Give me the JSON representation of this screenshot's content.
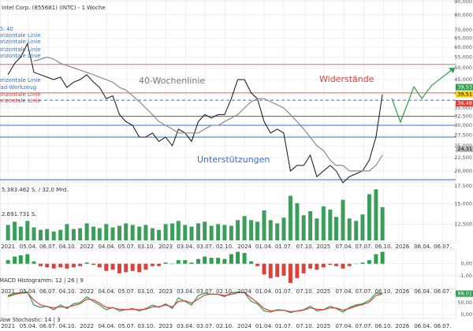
{
  "chart_data": [
    {
      "type": "line",
      "title": "Intel Corp. (855681) (INTC) - 1 Woche",
      "log_scale": true,
      "x": [
        "2021-01",
        "2021-02",
        "2021-03",
        "2021-04",
        "2021-05",
        "2021-06",
        "2021-07",
        "2021-08",
        "2021-09",
        "2021-10",
        "2021-11",
        "2021-12",
        "2022-01",
        "2022-02",
        "2022-03",
        "2022-04",
        "2022-05",
        "2022-06",
        "2022-07",
        "2022-08",
        "2022-09",
        "2022-10",
        "2022-11",
        "2022-12",
        "2023-01",
        "2023-02",
        "2023-03",
        "2023-04",
        "2023-05",
        "2023-06",
        "2023-07",
        "2023-08",
        "2023-09",
        "2023-10",
        "2023-11",
        "2023-12",
        "2024-01",
        "2024-02",
        "2024-03",
        "2024-04",
        "2024-05",
        "2024-06",
        "2024-07",
        "2024-08",
        "2024-09",
        "2024-10",
        "2024-11",
        "2024-12",
        "2025-01",
        "2025-02",
        "2025-03",
        "2025-04",
        "2025-05",
        "2025-06",
        "2025-07",
        "2025-08",
        "2025-09",
        "2025-10"
      ],
      "series": [
        {
          "color": "#111111",
          "values": [
            47,
            52,
            55,
            62,
            48,
            47,
            46,
            45,
            46,
            42,
            44,
            45,
            47,
            44,
            42,
            38,
            39,
            33,
            31,
            30,
            27,
            27,
            28,
            26,
            27,
            25,
            29,
            28,
            26,
            31,
            33,
            32,
            33,
            33,
            38,
            45,
            45,
            40,
            38,
            31,
            28,
            29,
            28,
            20,
            21,
            21,
            23,
            19,
            20,
            21,
            20,
            18,
            19,
            19.5,
            20,
            22,
            27,
            39.5
          ]
        },
        {
          "name": "40-Wochenlinie",
          "color": "#8a8a8a",
          "values": [
            null,
            null,
            null,
            null,
            53,
            54,
            55,
            54,
            52,
            51,
            50,
            49,
            48,
            47,
            46,
            45,
            44,
            42,
            41,
            39,
            37,
            35,
            33,
            31,
            30,
            29,
            28,
            28,
            28,
            28,
            29,
            30,
            30,
            31,
            32,
            33,
            35,
            37,
            38,
            38,
            37,
            36,
            35,
            33,
            31,
            29,
            27,
            25,
            24,
            22,
            21,
            21,
            20,
            20,
            20,
            20,
            21,
            23
          ]
        }
      ],
      "xlim": [
        "2020-11-25",
        "2026-09-05"
      ],
      "xticks": [
        {
          "value": "2021-01-01",
          "label": "2021"
        },
        {
          "value": "2021-04-05",
          "label": "05.04."
        },
        {
          "value": "2021-07-06",
          "label": "06.07."
        },
        {
          "value": "2021-10-04",
          "label": "04.10."
        },
        {
          "value": "2022-01-01",
          "label": "2022"
        },
        {
          "value": "2022-04-04",
          "label": "04.04."
        },
        {
          "value": "2022-07-05",
          "label": "05.07."
        },
        {
          "value": "2022-10-03",
          "label": "03.10."
        },
        {
          "value": "2023-01-01",
          "label": "2023"
        },
        {
          "value": "2023-04-03",
          "label": "03.04."
        },
        {
          "value": "2023-07-03",
          "label": "03.07."
        },
        {
          "value": "2023-10-02",
          "label": "02.10."
        },
        {
          "value": "2024-01-01",
          "label": "2024"
        },
        {
          "value": "2024-04-01",
          "label": "01.04."
        },
        {
          "value": "2024-07-01",
          "label": "01.07."
        },
        {
          "value": "2024-10-07",
          "label": "07.10."
        },
        {
          "value": "2025-01-01",
          "label": "2025"
        },
        {
          "value": "2025-04-07",
          "label": "07.04."
        },
        {
          "value": "2025-07-07",
          "label": "07.07."
        },
        {
          "value": "2025-10-06",
          "label": "06.10."
        },
        {
          "value": "2026-01-01",
          "label": "2026"
        },
        {
          "value": "2026-04-06",
          "label": "06.04."
        },
        {
          "value": "2026-07-06",
          "label": "06.07."
        }
      ],
      "ylim": [
        17.5,
        90
      ],
      "yticks": [
        {
          "value": 90,
          "label": "90,000"
        },
        {
          "value": 80,
          "label": "80,000"
        },
        {
          "value": 70,
          "label": "70,000"
        },
        {
          "value": 65,
          "label": "65,000"
        },
        {
          "value": 60,
          "label": "60,000"
        },
        {
          "value": 55,
          "label": "55,000"
        },
        {
          "value": 50,
          "label": "50,000"
        },
        {
          "value": 45,
          "label": "45,000"
        },
        {
          "value": 40,
          "label": "40,000"
        },
        {
          "value": 35,
          "label": "35,000"
        },
        {
          "value": 32.5,
          "label": "32,500"
        },
        {
          "value": 30,
          "label": "30,000"
        },
        {
          "value": 27.5,
          "label": "27,500"
        },
        {
          "value": 25,
          "label": "25,000"
        },
        {
          "value": 22.5,
          "label": "22,500"
        },
        {
          "value": 20,
          "label": "20,000"
        },
        {
          "value": 17.5,
          "label": "17,500"
        }
      ],
      "hlines": [
        {
          "value": 51.5,
          "color": "#e06666"
        },
        {
          "value": 40,
          "color": "#e06666"
        },
        {
          "value": 37.5,
          "color": "#3a6fc4",
          "dashed": true
        },
        {
          "value": 32.5,
          "color": "#3a6fc4"
        },
        {
          "value": 30,
          "color": "#3a6fc4"
        },
        {
          "value": 27,
          "color": "#3a6fc4"
        },
        {
          "value": 18.5,
          "color": "#3a6fc4"
        }
      ],
      "price_labels": [
        {
          "value": 39.53,
          "label": "39,53",
          "color": "#2e9e4f"
        },
        {
          "value": 39.51,
          "label": "39,51",
          "color": "#f2d21b"
        },
        {
          "value": 36.48,
          "label": "36,48",
          "color": "#e0403a"
        },
        {
          "value": 24.31,
          "label": "24,31",
          "color": "#bbbbbb"
        }
      ],
      "annotations": [
        "Widerstände",
        "Unterstützungen"
      ],
      "left_labels": [
        "D: 40",
        "orizontale Linie",
        "orizontale Linie",
        "orizontale Linie",
        "orizontale Linie",
        "orizontale Linie",
        "fad-Werkzeug",
        "orizontale Linie",
        "orizontale Linie"
      ]
    },
    {
      "type": "bar",
      "color": "#3c9e5a",
      "values": [
        12.4,
        12.8,
        12.2,
        12.9,
        12.1,
        11.8,
        11.9,
        11.6,
        11.8,
        12.5,
        11.9,
        12.0,
        12.6,
        12.2,
        12.0,
        12.5,
        12.1,
        12.3,
        12.6,
        12.4,
        12.2,
        12.4,
        12.0,
        11.8,
        12.5,
        12.6,
        12.9,
        12.4,
        12.2,
        12.6,
        12.8,
        12.3,
        12.5,
        12.4,
        12.3,
        13.0,
        13.5,
        13.0,
        12.8,
        14.2,
        13.0,
        12.6,
        13.3,
        16.0,
        15.1,
        13.6,
        14.1,
        13.2,
        14.7,
        14.3,
        13.4,
        15.5,
        13.2,
        12.9,
        13.7,
        16.2,
        16.8,
        14.6
      ],
      "ylim": [
        10.5,
        17.6
      ],
      "yticks": [
        {
          "value": 15,
          "label": "15,000"
        },
        {
          "value": 12.5,
          "label": "12,500"
        }
      ],
      "annotations": [
        "5.383.462 S. / 32,0 Mrd.",
        "2.691.731 S."
      ]
    },
    {
      "type": "bar",
      "title": "MACD Histogramm: 12 | 26 | 9",
      "colors": {
        "positive": "#2e9e4f",
        "negative": "#e0403a"
      },
      "values": [
        0.3,
        0.6,
        0.7,
        0.8,
        0.2,
        -0.2,
        -0.3,
        -0.4,
        -0.3,
        -0.4,
        -0.3,
        -0.2,
        0.1,
        -0.1,
        -0.3,
        -0.6,
        -0.5,
        -0.8,
        -0.7,
        -0.6,
        -0.7,
        -0.5,
        -0.2,
        -0.2,
        0.1,
        0,
        0.3,
        0.3,
        0.1,
        0.4,
        0.6,
        0.5,
        0.5,
        0.4,
        0.8,
        1.0,
        0.9,
        0.2,
        -0.2,
        -0.9,
        -1.2,
        -1.1,
        -1.0,
        -1.6,
        -1.2,
        -0.8,
        -0.4,
        -0.5,
        -0.3,
        -0.1,
        -0.2,
        -0.4,
        -0.2,
        0,
        0.1,
        0.3,
        0.8,
        1.0
      ],
      "ylim": [
        -2,
        1.1
      ],
      "yticks": [
        {
          "value": 0,
          "label": "0,00"
        },
        {
          "value": -1,
          "label": "-1,00"
        }
      ]
    },
    {
      "type": "line",
      "title": "Slow Stochastic: 14 | 3",
      "series": [
        {
          "color": "#2e9e4f",
          "values": [
            80,
            90,
            92,
            95,
            40,
            30,
            35,
            20,
            40,
            25,
            45,
            50,
            75,
            55,
            40,
            20,
            30,
            15,
            20,
            25,
            15,
            25,
            40,
            30,
            45,
            25,
            70,
            55,
            40,
            80,
            90,
            85,
            85,
            75,
            92,
            95,
            92,
            55,
            45,
            15,
            10,
            20,
            18,
            8,
            15,
            20,
            35,
            15,
            20,
            35,
            25,
            10,
            30,
            40,
            45,
            60,
            90,
            88.01
          ]
        },
        {
          "color": "#e0403a",
          "values": [
            75,
            85,
            90,
            92,
            60,
            40,
            33,
            28,
            32,
            30,
            38,
            45,
            65,
            62,
            48,
            30,
            28,
            22,
            20,
            22,
            20,
            22,
            32,
            33,
            40,
            32,
            55,
            58,
            48,
            65,
            82,
            86,
            85,
            80,
            85,
            92,
            93,
            70,
            50,
            25,
            15,
            17,
            18,
            12,
            14,
            18,
            28,
            22,
            20,
            28,
            27,
            18,
            25,
            35,
            42,
            52,
            80,
            87
          ]
        }
      ],
      "ylim": [
        0,
        100
      ],
      "yticks": [
        {
          "value": 50,
          "label": "50,00"
        },
        {
          "value": 0,
          "label": "0,00"
        }
      ],
      "last_label": {
        "value": 88.01,
        "label": "88,01",
        "color": "#2e9e4f"
      }
    }
  ]
}
